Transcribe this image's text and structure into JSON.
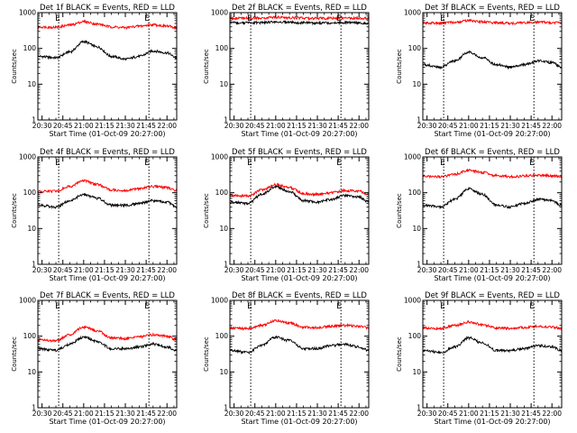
{
  "panel_common": {
    "title_suffix": "BLACK = Events, RED = LLD",
    "xlabel": "Start Time (01-Oct-09 20:27:00)",
    "ylabel": "Counts/sec",
    "x_ticks": [
      "20:30",
      "20:45",
      "21:00",
      "21:15",
      "21:30",
      "21:45",
      "22:00"
    ],
    "y_ticks": [
      "1",
      "10",
      "100",
      "1000"
    ],
    "marker_label": "E"
  },
  "chart_data": [
    {
      "type": "line",
      "title": "Det 1f BLACK = Events, RED = LLD",
      "xlabel": "Start Time (01-Oct-09 20:27:00)",
      "ylabel": "Counts/sec",
      "y_scale": "log",
      "ylim": [
        1,
        1000
      ],
      "xlim": [
        "20:27",
        "22:07"
      ],
      "marker_lines": [
        "20:42",
        "21:47"
      ],
      "series": [
        {
          "color": "#000000",
          "x": [
            "20:27",
            "20:40",
            "20:50",
            "21:00",
            "21:10",
            "21:20",
            "21:30",
            "21:40",
            "21:50",
            "22:00",
            "22:07"
          ],
          "values": [
            60,
            55,
            80,
            155,
            110,
            60,
            50,
            60,
            85,
            75,
            55
          ]
        },
        {
          "color": "#ff0000",
          "x": [
            "20:27",
            "20:40",
            "20:50",
            "21:00",
            "21:10",
            "21:20",
            "21:30",
            "21:40",
            "21:50",
            "22:00",
            "22:07"
          ],
          "values": [
            400,
            390,
            450,
            560,
            480,
            400,
            380,
            420,
            460,
            420,
            380
          ]
        }
      ]
    },
    {
      "type": "line",
      "title": "Det 2f BLACK = Events, RED = LLD",
      "xlabel": "Start Time (01-Oct-09 20:27:00)",
      "ylabel": "Counts/sec",
      "y_scale": "log",
      "ylim": [
        1,
        1000
      ],
      "xlim": [
        "20:27",
        "22:07"
      ],
      "marker_lines": [
        "20:42",
        "21:47"
      ],
      "series": [
        {
          "color": "#000000",
          "x": [
            "20:27",
            "20:40",
            "20:50",
            "21:00",
            "21:10",
            "21:20",
            "21:30",
            "21:40",
            "21:50",
            "22:00",
            "22:07"
          ],
          "values": [
            520,
            520,
            530,
            550,
            540,
            520,
            510,
            520,
            530,
            520,
            510
          ]
        },
        {
          "color": "#ff0000",
          "x": [
            "20:27",
            "20:40",
            "20:50",
            "21:00",
            "21:10",
            "21:20",
            "21:30",
            "21:40",
            "21:50",
            "22:00",
            "22:07"
          ],
          "values": [
            700,
            700,
            720,
            740,
            720,
            700,
            690,
            700,
            710,
            700,
            690
          ]
        }
      ]
    },
    {
      "type": "line",
      "title": "Det 3f BLACK = Events, RED = LLD",
      "xlabel": "Start Time (01-Oct-09 20:27:00)",
      "ylabel": "Counts/sec",
      "y_scale": "log",
      "ylim": [
        1,
        1000
      ],
      "xlim": [
        "20:27",
        "22:07"
      ],
      "marker_lines": [
        "20:42",
        "21:47"
      ],
      "series": [
        {
          "color": "#000000",
          "x": [
            "20:27",
            "20:40",
            "20:50",
            "21:00",
            "21:10",
            "21:20",
            "21:30",
            "21:40",
            "21:50",
            "22:00",
            "22:07"
          ],
          "values": [
            35,
            30,
            45,
            80,
            55,
            35,
            30,
            35,
            45,
            40,
            30
          ]
        },
        {
          "color": "#ff0000",
          "x": [
            "20:27",
            "20:40",
            "20:50",
            "21:00",
            "21:10",
            "21:20",
            "21:30",
            "21:40",
            "21:50",
            "22:00",
            "22:07"
          ],
          "values": [
            520,
            510,
            540,
            600,
            560,
            520,
            510,
            520,
            540,
            530,
            510
          ]
        }
      ]
    },
    {
      "type": "line",
      "title": "Det 4f BLACK = Events, RED = LLD",
      "xlabel": "Start Time (01-Oct-09 20:27:00)",
      "ylabel": "Counts/sec",
      "y_scale": "log",
      "ylim": [
        1,
        1000
      ],
      "xlim": [
        "20:27",
        "22:07"
      ],
      "marker_lines": [
        "20:42",
        "21:47"
      ],
      "series": [
        {
          "color": "#000000",
          "x": [
            "20:27",
            "20:40",
            "20:50",
            "21:00",
            "21:10",
            "21:20",
            "21:30",
            "21:40",
            "21:50",
            "22:00",
            "22:07"
          ],
          "values": [
            45,
            40,
            60,
            90,
            70,
            45,
            45,
            50,
            60,
            55,
            40
          ]
        },
        {
          "color": "#ff0000",
          "x": [
            "20:27",
            "20:40",
            "20:50",
            "21:00",
            "21:10",
            "21:20",
            "21:30",
            "21:40",
            "21:50",
            "22:00",
            "22:07"
          ],
          "values": [
            110,
            110,
            150,
            220,
            170,
            120,
            115,
            130,
            150,
            140,
            115
          ]
        }
      ]
    },
    {
      "type": "line",
      "title": "Det 5f BLACK = Events, RED = LLD",
      "xlabel": "Start Time (01-Oct-09 20:27:00)",
      "ylabel": "Counts/sec",
      "y_scale": "log",
      "ylim": [
        1,
        1000
      ],
      "xlim": [
        "20:27",
        "22:07"
      ],
      "marker_lines": [
        "20:42",
        "21:47"
      ],
      "series": [
        {
          "color": "#000000",
          "x": [
            "20:27",
            "20:40",
            "20:50",
            "21:00",
            "21:10",
            "21:20",
            "21:30",
            "21:40",
            "21:50",
            "22:00",
            "22:07"
          ],
          "values": [
            55,
            50,
            90,
            150,
            110,
            60,
            55,
            65,
            85,
            75,
            55
          ]
        },
        {
          "color": "#ff0000",
          "x": [
            "20:27",
            "20:40",
            "20:50",
            "21:00",
            "21:10",
            "21:20",
            "21:30",
            "21:40",
            "21:50",
            "22:00",
            "22:07"
          ],
          "values": [
            85,
            80,
            120,
            170,
            140,
            95,
            90,
            100,
            115,
            110,
            90
          ]
        }
      ]
    },
    {
      "type": "line",
      "title": "Det 6f BLACK = Events, RED = LLD",
      "xlabel": "Start Time (01-Oct-09 20:27:00)",
      "ylabel": "Counts/sec",
      "y_scale": "log",
      "ylim": [
        1,
        1000
      ],
      "xlim": [
        "20:27",
        "22:07"
      ],
      "marker_lines": [
        "20:42",
        "21:47"
      ],
      "series": [
        {
          "color": "#000000",
          "x": [
            "20:27",
            "20:40",
            "20:50",
            "21:00",
            "21:10",
            "21:20",
            "21:30",
            "21:40",
            "21:50",
            "22:00",
            "22:07"
          ],
          "values": [
            45,
            40,
            65,
            130,
            90,
            45,
            40,
            50,
            65,
            60,
            45
          ]
        },
        {
          "color": "#ff0000",
          "x": [
            "20:27",
            "20:40",
            "20:50",
            "21:00",
            "21:10",
            "21:20",
            "21:30",
            "21:40",
            "21:50",
            "22:00",
            "22:07"
          ],
          "values": [
            290,
            280,
            330,
            420,
            370,
            300,
            280,
            290,
            310,
            300,
            280
          ]
        }
      ]
    },
    {
      "type": "line",
      "title": "Det 7f BLACK = Events, RED = LLD",
      "xlabel": "Start Time (01-Oct-09 20:27:00)",
      "ylabel": "Counts/sec",
      "y_scale": "log",
      "ylim": [
        1,
        1000
      ],
      "xlim": [
        "20:27",
        "22:07"
      ],
      "marker_lines": [
        "20:42",
        "21:47"
      ],
      "series": [
        {
          "color": "#000000",
          "x": [
            "20:27",
            "20:40",
            "20:50",
            "21:00",
            "21:10",
            "21:20",
            "21:30",
            "21:40",
            "21:50",
            "22:00",
            "22:07"
          ],
          "values": [
            45,
            40,
            60,
            95,
            70,
            45,
            45,
            50,
            60,
            50,
            40
          ]
        },
        {
          "color": "#ff0000",
          "x": [
            "20:27",
            "20:40",
            "20:50",
            "21:00",
            "21:10",
            "21:20",
            "21:30",
            "21:40",
            "21:50",
            "22:00",
            "22:07"
          ],
          "values": [
            80,
            75,
            110,
            180,
            140,
            90,
            85,
            95,
            110,
            100,
            80
          ]
        }
      ]
    },
    {
      "type": "line",
      "title": "Det 8f BLACK = Events, RED = LLD",
      "xlabel": "Start Time (01-Oct-09 20:27:00)",
      "ylabel": "Counts/sec",
      "y_scale": "log",
      "ylim": [
        1,
        1000
      ],
      "xlim": [
        "20:27",
        "22:07"
      ],
      "marker_lines": [
        "20:42",
        "21:47"
      ],
      "series": [
        {
          "color": "#000000",
          "x": [
            "20:27",
            "20:40",
            "20:50",
            "21:00",
            "21:10",
            "21:20",
            "21:30",
            "21:40",
            "21:50",
            "22:00",
            "22:07"
          ],
          "values": [
            40,
            35,
            55,
            95,
            75,
            45,
            45,
            55,
            60,
            50,
            40
          ]
        },
        {
          "color": "#ff0000",
          "x": [
            "20:27",
            "20:40",
            "20:50",
            "21:00",
            "21:10",
            "21:20",
            "21:30",
            "21:40",
            "21:50",
            "22:00",
            "22:07"
          ],
          "values": [
            170,
            165,
            200,
            270,
            230,
            180,
            175,
            190,
            200,
            190,
            170
          ]
        }
      ]
    },
    {
      "type": "line",
      "title": "Det 9f BLACK = Events, RED = LLD",
      "xlabel": "Start Time (01-Oct-09 20:27:00)",
      "ylabel": "Counts/sec",
      "y_scale": "log",
      "ylim": [
        1,
        1000
      ],
      "xlim": [
        "20:27",
        "22:07"
      ],
      "marker_lines": [
        "20:42",
        "21:47"
      ],
      "series": [
        {
          "color": "#000000",
          "x": [
            "20:27",
            "20:40",
            "20:50",
            "21:00",
            "21:10",
            "21:20",
            "21:30",
            "21:40",
            "21:50",
            "22:00",
            "22:07"
          ],
          "values": [
            40,
            35,
            50,
            90,
            65,
            40,
            40,
            45,
            55,
            50,
            40
          ]
        },
        {
          "color": "#ff0000",
          "x": [
            "20:27",
            "20:40",
            "20:50",
            "21:00",
            "21:10",
            "21:20",
            "21:30",
            "21:40",
            "21:50",
            "22:00",
            "22:07"
          ],
          "values": [
            170,
            165,
            200,
            250,
            210,
            170,
            165,
            175,
            190,
            180,
            165
          ]
        }
      ]
    }
  ]
}
